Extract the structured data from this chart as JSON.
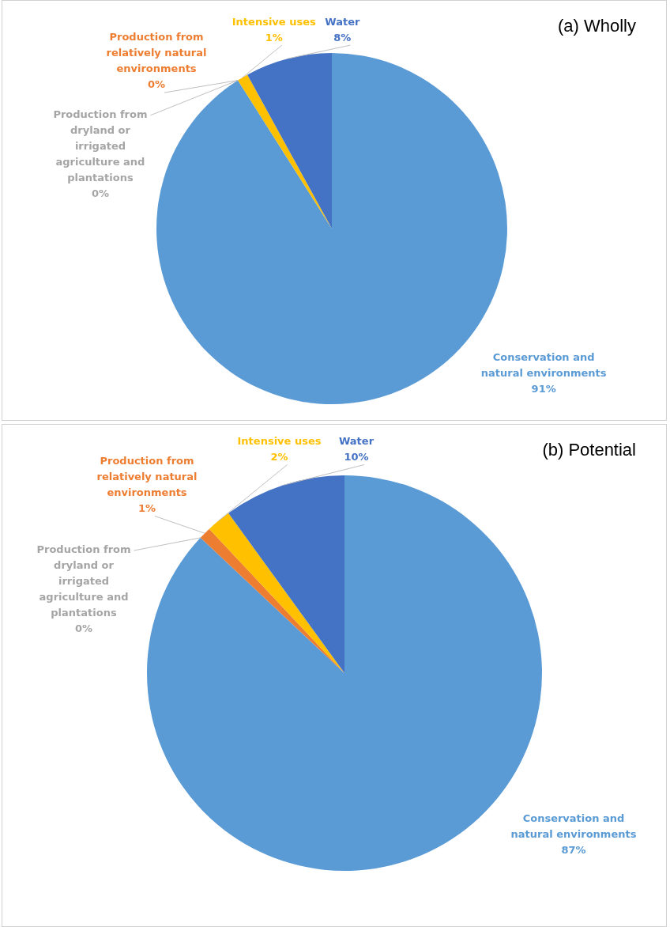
{
  "chart_data": [
    {
      "type": "pie",
      "title": "(a) Wholly",
      "categories": [
        "Conservation and natural environments",
        "Production from dryland or irrigated agriculture and plantations",
        "Production from relatively natural environments",
        "Intensive uses",
        "Water"
      ],
      "values": [
        91,
        0,
        0,
        1,
        8
      ],
      "colors": [
        "#5b9bd5",
        "#a5a5a5",
        "#ed7d31",
        "#ffc000",
        "#4472c4"
      ],
      "value_labels": [
        "91%",
        "0%",
        "0%",
        "1%",
        "8%"
      ],
      "legend": false
    },
    {
      "type": "pie",
      "title": "(b) Potential",
      "categories": [
        "Conservation and natural environments",
        "Production from dryland or irrigated agriculture and plantations",
        "Production from relatively natural environments",
        "Intensive uses",
        "Water"
      ],
      "values": [
        87,
        0,
        1,
        2,
        10
      ],
      "colors": [
        "#5b9bd5",
        "#a5a5a5",
        "#ed7d31",
        "#ffc000",
        "#4472c4"
      ],
      "value_labels": [
        "87%",
        "0%",
        "1%",
        "2%",
        "10%"
      ],
      "legend": false
    }
  ]
}
